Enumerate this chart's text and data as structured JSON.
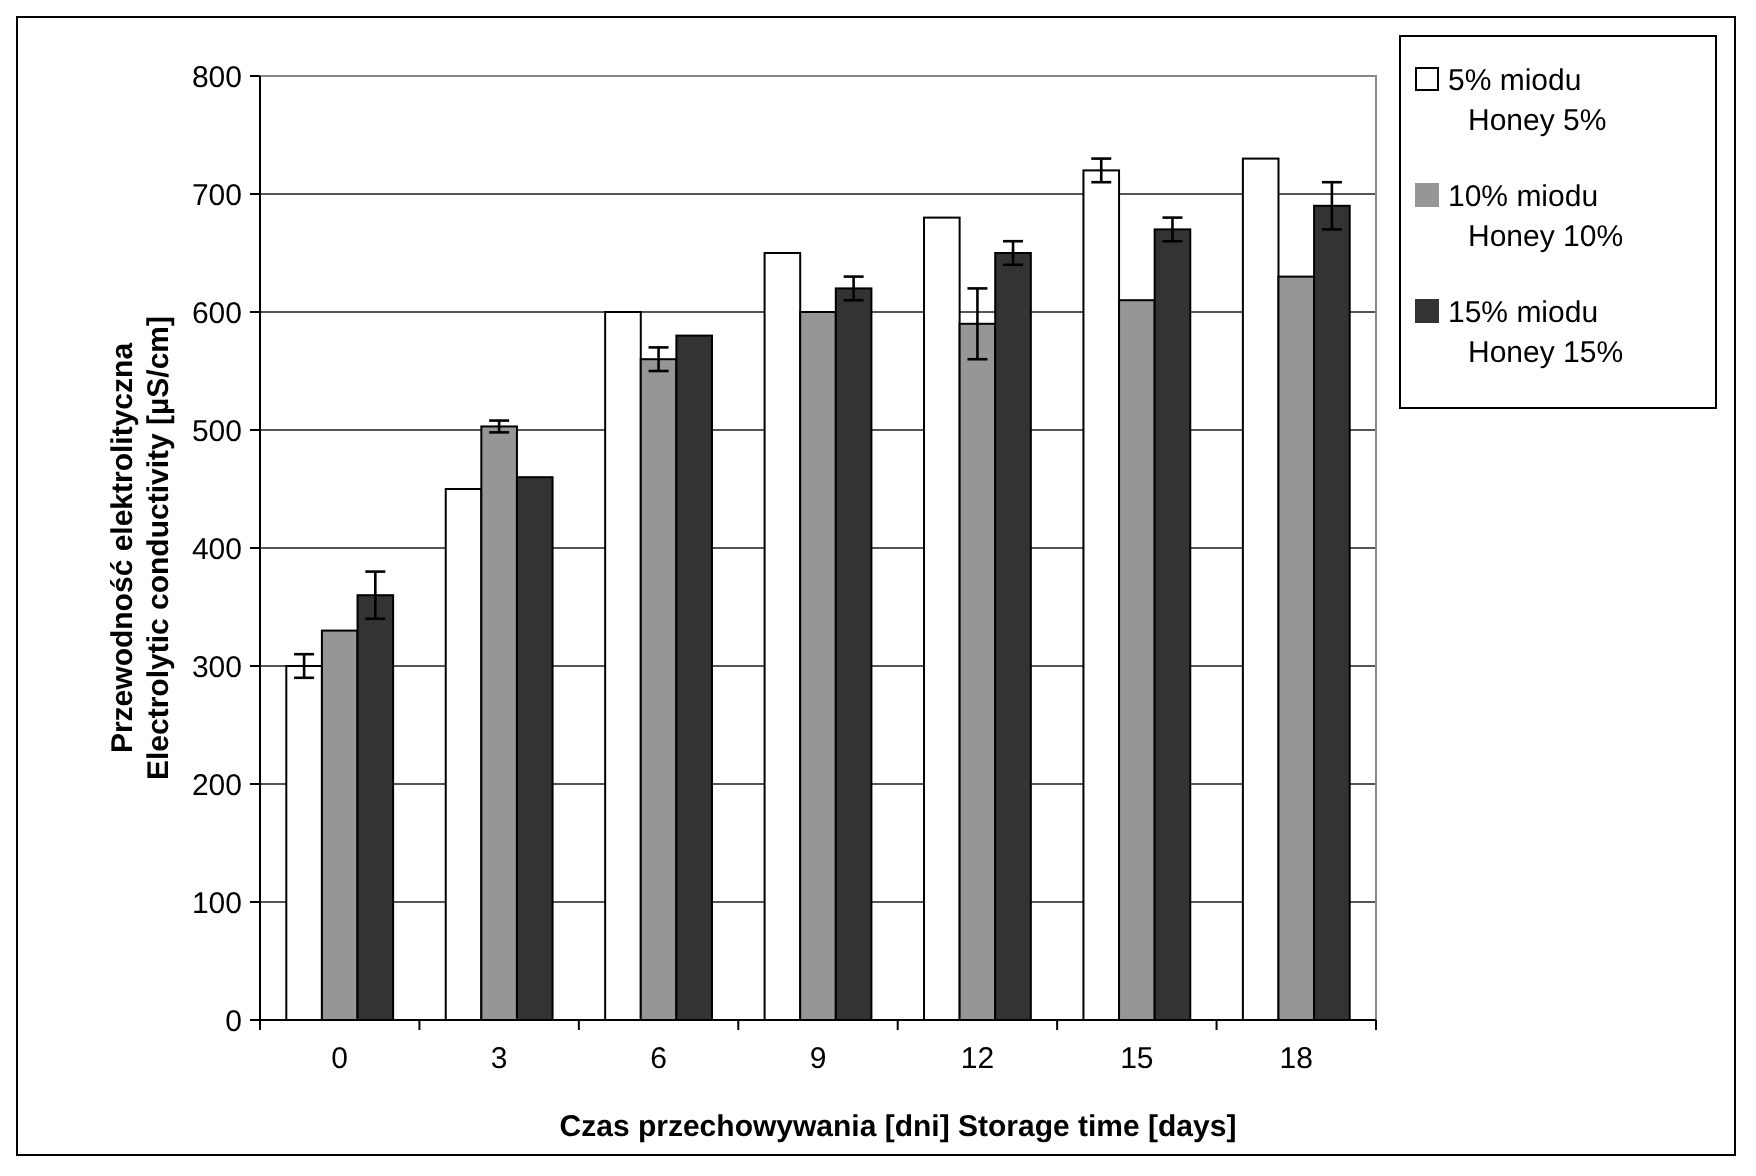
{
  "chart_data": {
    "type": "bar",
    "xlabel": "Czas przechowywania [dni] Storage time [days]",
    "ylabel": "Przewodność elektrolityczna\nElectrolytic conductivity [µS/cm]",
    "categories": [
      "0",
      "3",
      "6",
      "9",
      "12",
      "15",
      "18"
    ],
    "series": [
      {
        "name": "5% miodu\nHoney 5%",
        "color": "#ffffff",
        "values": [
          300,
          450,
          600,
          650,
          680,
          720,
          730
        ],
        "errors": [
          10,
          null,
          null,
          null,
          null,
          10,
          null
        ]
      },
      {
        "name": "10% miodu\nHoney 10%",
        "color": "#969696",
        "values": [
          330,
          503,
          560,
          600,
          590,
          610,
          630
        ],
        "errors": [
          null,
          5,
          10,
          null,
          30,
          null,
          null
        ]
      },
      {
        "name": "15% miodu\nHoney 15%",
        "color": "#333333",
        "values": [
          360,
          460,
          580,
          620,
          650,
          670,
          690
        ],
        "errors": [
          20,
          null,
          null,
          10,
          10,
          10,
          20
        ]
      }
    ],
    "ylim": [
      0,
      800
    ],
    "yticks": [
      0,
      100,
      200,
      300,
      400,
      500,
      600,
      700,
      800
    ],
    "grid": "y",
    "legend": "top right"
  }
}
